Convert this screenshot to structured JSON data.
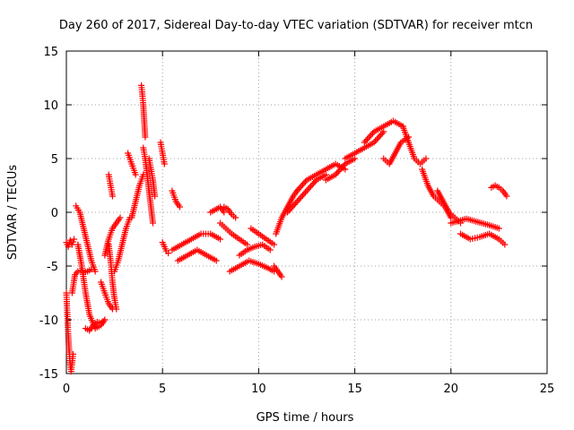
{
  "chart_data": {
    "type": "scatter",
    "title": "Day 260 of 2017, Sidereal Day-to-day VTEC variation (SDTVAR) for receiver mtcn",
    "xlabel": "GPS time / hours",
    "ylabel": "SDTVAR / TECUs",
    "xlim": [
      0,
      25
    ],
    "ylim": [
      -15,
      15
    ],
    "xticks": [
      0,
      5,
      10,
      15,
      20,
      25
    ],
    "yticks": [
      -15,
      -10,
      -5,
      0,
      5,
      10,
      15
    ],
    "grid": true,
    "marker": "+",
    "color": "#ff0000",
    "series": [
      {
        "name": "SDTVAR",
        "segments": [
          {
            "x": [
              0.0,
              0.05,
              0.1,
              0.15,
              0.2,
              0.25,
              0.3,
              0.35
            ],
            "y": [
              -7.5,
              -9.5,
              -11.5,
              -13.0,
              -14.2,
              -14.8,
              -14.0,
              -13.2
            ]
          },
          {
            "x": [
              0.0,
              0.1,
              0.2,
              0.3,
              0.4
            ],
            "y": [
              -2.8,
              -3.2,
              -2.6,
              -3.0,
              -2.5
            ]
          },
          {
            "x": [
              0.3,
              0.45,
              0.6,
              0.75,
              0.9,
              1.1,
              1.3
            ],
            "y": [
              -7.5,
              -5.8,
              -5.5,
              -5.4,
              -5.6,
              -5.5,
              -5.3
            ]
          },
          {
            "x": [
              0.5,
              0.7,
              0.9,
              1.1,
              1.3,
              1.5
            ],
            "y": [
              0.6,
              0.0,
              -1.5,
              -3.0,
              -4.5,
              -5.5
            ]
          },
          {
            "x": [
              0.6,
              0.8,
              1.0,
              1.2,
              1.5,
              1.8,
              2.0
            ],
            "y": [
              -3.0,
              -5.0,
              -7.5,
              -9.5,
              -10.8,
              -10.5,
              -10.0
            ]
          },
          {
            "x": [
              1.0,
              1.2,
              1.4,
              1.6,
              1.8,
              2.0
            ],
            "y": [
              -10.8,
              -11.0,
              -10.5,
              -10.2,
              -10.3,
              -10.0
            ]
          },
          {
            "x": [
              1.8,
              2.0,
              2.2,
              2.4
            ],
            "y": [
              -6.5,
              -7.5,
              -8.5,
              -9.0
            ]
          },
          {
            "x": [
              2.2,
              2.3,
              2.4,
              2.5,
              2.6
            ],
            "y": [
              -3.0,
              -4.5,
              -6.5,
              -8.0,
              -9.0
            ]
          },
          {
            "x": [
              2.0,
              2.2,
              2.4,
              2.6,
              2.8
            ],
            "y": [
              -4.0,
              -2.5,
              -1.5,
              -1.0,
              -0.5
            ]
          },
          {
            "x": [
              2.2,
              2.3,
              2.4
            ],
            "y": [
              3.5,
              2.5,
              1.5
            ]
          },
          {
            "x": [
              2.5,
              2.7,
              2.9,
              3.1,
              3.3
            ],
            "y": [
              -5.5,
              -4.5,
              -3.0,
              -1.5,
              -0.5
            ]
          },
          {
            "x": [
              3.2,
              3.4,
              3.6
            ],
            "y": [
              5.5,
              4.5,
              3.5
            ]
          },
          {
            "x": [
              3.4,
              3.6,
              3.8,
              4.0
            ],
            "y": [
              -0.5,
              1.0,
              2.5,
              3.5
            ]
          },
          {
            "x": [
              3.9,
              3.95,
              4.0,
              4.05,
              4.1
            ],
            "y": [
              11.8,
              11.0,
              10.0,
              8.5,
              7.0
            ]
          },
          {
            "x": [
              4.0,
              4.1,
              4.2,
              4.3,
              4.4,
              4.5
            ],
            "y": [
              6.0,
              5.0,
              3.5,
              2.0,
              0.5,
              -1.0
            ]
          },
          {
            "x": [
              4.3,
              4.4,
              4.5,
              4.6
            ],
            "y": [
              5.0,
              4.0,
              3.0,
              1.5
            ]
          },
          {
            "x": [
              4.9,
              5.0,
              5.1
            ],
            "y": [
              6.5,
              5.5,
              4.5
            ]
          },
          {
            "x": [
              5.0,
              5.1,
              5.2,
              5.3
            ],
            "y": [
              -2.8,
              -3.2,
              -3.6,
              -3.8
            ]
          },
          {
            "x": [
              5.5,
              5.7,
              5.9
            ],
            "y": [
              2.0,
              1.0,
              0.5
            ]
          },
          {
            "x": [
              5.5,
              6.0,
              6.5,
              7.0,
              7.5,
              8.0
            ],
            "y": [
              -3.5,
              -3.0,
              -2.5,
              -2.0,
              -2.0,
              -2.5
            ]
          },
          {
            "x": [
              5.8,
              6.3,
              6.8,
              7.3,
              7.8
            ],
            "y": [
              -4.5,
              -4.0,
              -3.5,
              -4.0,
              -4.5
            ]
          },
          {
            "x": [
              7.5,
              7.8,
              8.0,
              8.2
            ],
            "y": [
              0.0,
              0.3,
              0.5,
              0.0
            ]
          },
          {
            "x": [
              8.0,
              8.3,
              8.6,
              9.0,
              9.4
            ],
            "y": [
              -1.0,
              -1.5,
              -2.0,
              -2.5,
              -3.0
            ]
          },
          {
            "x": [
              8.2,
              8.4,
              8.6,
              8.8
            ],
            "y": [
              0.5,
              0.3,
              -0.2,
              -0.5
            ]
          },
          {
            "x": [
              8.5,
              9.0,
              9.5,
              10.0,
              10.5,
              10.8
            ],
            "y": [
              -5.5,
              -5.0,
              -4.5,
              -4.8,
              -5.2,
              -5.5
            ]
          },
          {
            "x": [
              9.0,
              9.4,
              9.8,
              10.2,
              10.6
            ],
            "y": [
              -4.0,
              -3.5,
              -3.2,
              -3.0,
              -3.5
            ]
          },
          {
            "x": [
              9.6,
              10.0,
              10.4,
              10.8
            ],
            "y": [
              -1.5,
              -2.0,
              -2.5,
              -3.0
            ]
          },
          {
            "x": [
              10.8,
              11.0,
              11.2
            ],
            "y": [
              -5.0,
              -5.5,
              -6.0
            ]
          },
          {
            "x": [
              10.9,
              11.2,
              11.5,
              11.8,
              12.0
            ],
            "y": [
              -2.0,
              -0.5,
              0.5,
              1.5,
              2.0
            ]
          },
          {
            "x": [
              11.5,
              12.0,
              12.5,
              13.0,
              13.5
            ],
            "y": [
              0.0,
              1.0,
              2.0,
              3.0,
              3.5
            ]
          },
          {
            "x": [
              12.0,
              12.5,
              13.0,
              13.5,
              14.0,
              14.5
            ],
            "y": [
              2.0,
              3.0,
              3.5,
              4.0,
              4.5,
              4.0
            ]
          },
          {
            "x": [
              13.5,
              14.0,
              14.5,
              15.0
            ],
            "y": [
              3.0,
              3.5,
              4.5,
              5.0
            ]
          },
          {
            "x": [
              14.5,
              15.0,
              15.5,
              16.0,
              16.5
            ],
            "y": [
              5.0,
              5.5,
              6.0,
              6.5,
              7.5
            ]
          },
          {
            "x": [
              15.5,
              16.0,
              16.5,
              17.0,
              17.5
            ],
            "y": [
              6.5,
              7.5,
              8.0,
              8.5,
              8.0
            ]
          },
          {
            "x": [
              16.5,
              16.8,
              17.1,
              17.4,
              17.8
            ],
            "y": [
              5.0,
              4.5,
              5.5,
              6.5,
              7.0
            ]
          },
          {
            "x": [
              17.5,
              17.8,
              18.1,
              18.4,
              18.7
            ],
            "y": [
              8.0,
              6.5,
              5.0,
              4.5,
              5.0
            ]
          },
          {
            "x": [
              18.5,
              18.8,
              19.1,
              19.4,
              19.7,
              20.0
            ],
            "y": [
              4.0,
              2.5,
              1.5,
              1.0,
              0.5,
              -0.5
            ]
          },
          {
            "x": [
              19.3,
              19.6,
              19.9,
              20.2,
              20.5
            ],
            "y": [
              2.0,
              1.0,
              0.0,
              -0.5,
              -1.0
            ]
          },
          {
            "x": [
              20.0,
              20.4,
              20.8,
              21.2,
              21.6,
              22.0,
              22.5
            ],
            "y": [
              -1.0,
              -0.8,
              -0.6,
              -0.8,
              -1.0,
              -1.2,
              -1.5
            ]
          },
          {
            "x": [
              20.5,
              21.0,
              21.5,
              22.0,
              22.5,
              22.8
            ],
            "y": [
              -2.0,
              -2.5,
              -2.3,
              -2.0,
              -2.5,
              -3.0
            ]
          },
          {
            "x": [
              22.1,
              22.3,
              22.5,
              22.7,
              22.9
            ],
            "y": [
              2.3,
              2.5,
              2.3,
              2.0,
              1.5
            ]
          }
        ]
      }
    ]
  }
}
